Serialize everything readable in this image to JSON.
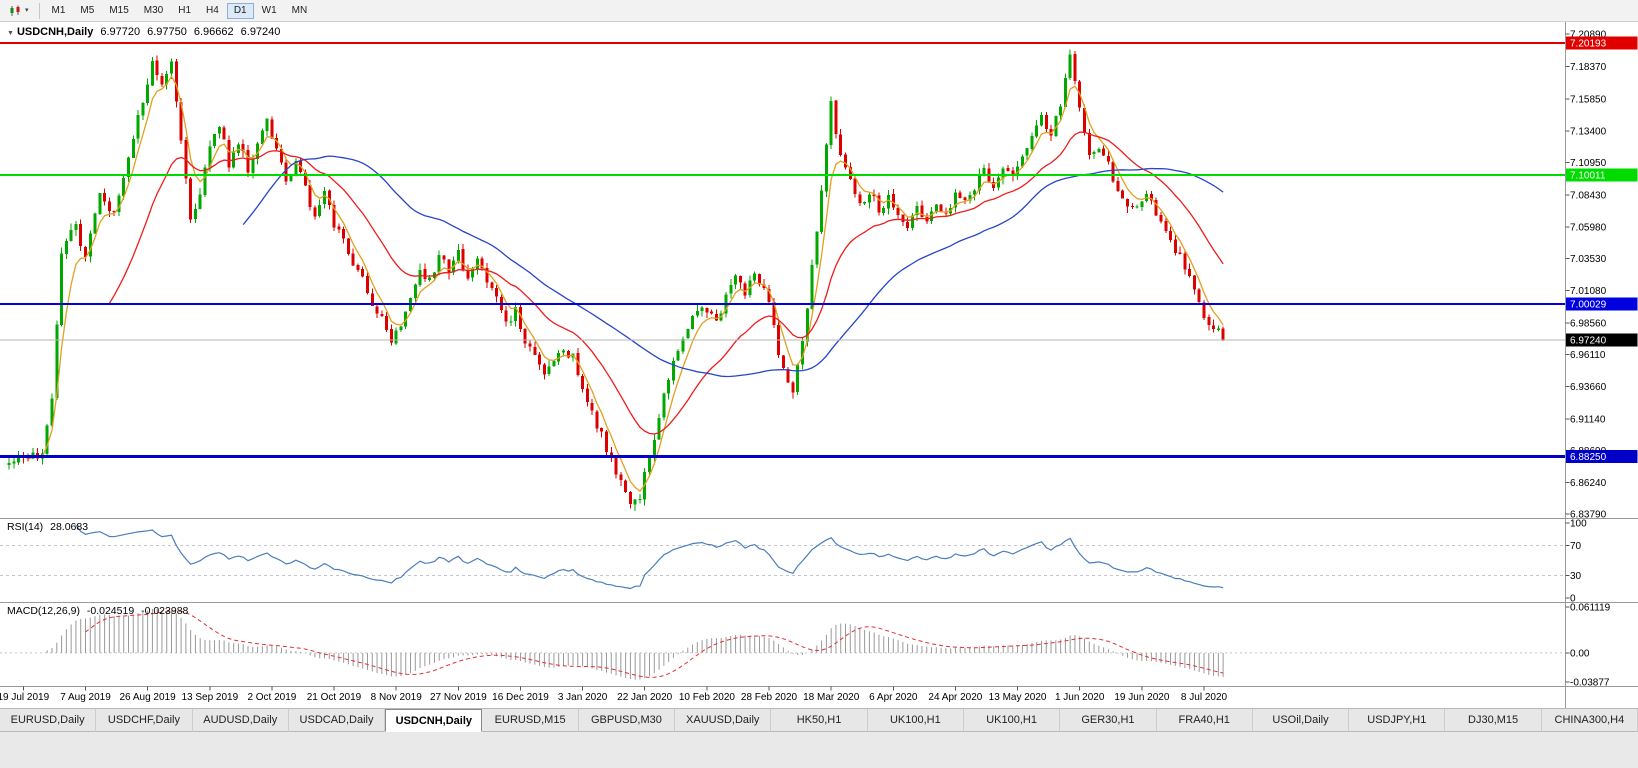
{
  "toolbar": {
    "timeframes": [
      "M1",
      "M5",
      "M15",
      "M30",
      "H1",
      "H4",
      "D1",
      "W1",
      "MN"
    ],
    "active_timeframe": "D1"
  },
  "chart": {
    "title": "USDCNH,Daily",
    "quote_open": "6.97720",
    "quote_high": "6.97750",
    "quote_low": "6.96662",
    "quote_close": "6.97240"
  },
  "rsi_panel": {
    "label": "RSI(14)",
    "value": "28.0683",
    "axis_labels": [
      "100",
      "70",
      "30",
      "0"
    ],
    "levels": [
      70,
      30
    ],
    "line_color": "#4a7ebb",
    "level_line_color": "#c3c3d1"
  },
  "macd_panel": {
    "label": "MACD(12,26,9)",
    "value_main": "-0.024519",
    "value_signal": "-0.023988",
    "axis_labels": [
      "0.061119",
      "0.00",
      "-0.03877"
    ],
    "histogram_color": "#999999",
    "signal_color": "#e03232"
  },
  "chart_data": {
    "type": "candlestick",
    "symbol": "USDCNH",
    "period": "Daily",
    "x_labels": [
      "19 Jul 2019",
      "7 Aug 2019",
      "26 Aug 2019",
      "13 Sep 2019",
      "2 Oct 2019",
      "21 Oct 2019",
      "8 Nov 2019",
      "27 Nov 2019",
      "16 Dec 2019",
      "3 Jan 2020",
      "22 Jan 2020",
      "10 Feb 2020",
      "28 Feb 2020",
      "18 Mar 2020",
      "6 Apr 2020",
      "24 Apr 2020",
      "13 May 2020",
      "1 Jun 2020",
      "19 Jun 2020",
      "8 Jul 2020"
    ],
    "x_label_indices": [
      3,
      16,
      29,
      42,
      55,
      68,
      81,
      94,
      107,
      120,
      133,
      146,
      159,
      172,
      185,
      198,
      211,
      224,
      237,
      250
    ],
    "y_ticks": [
      7.2089,
      7.1837,
      7.1585,
      7.134,
      7.1095,
      7.0843,
      7.0598,
      7.0353,
      7.0108,
      6.9856,
      6.9611,
      6.9366,
      6.9114,
      6.8869,
      6.8624,
      6.8379
    ],
    "y_range": [
      6.8379,
      7.2089
    ],
    "candle_count": 255,
    "noise": 0.0085,
    "seed": 20200710,
    "close_anchors": [
      [
        0,
        6.881
      ],
      [
        7,
        6.882
      ],
      [
        9,
        6.928
      ],
      [
        11,
        7.038
      ],
      [
        14,
        7.062
      ],
      [
        16,
        7.035
      ],
      [
        19,
        7.082
      ],
      [
        22,
        7.068
      ],
      [
        25,
        7.112
      ],
      [
        28,
        7.158
      ],
      [
        30,
        7.188
      ],
      [
        32,
        7.172
      ],
      [
        34,
        7.188
      ],
      [
        36,
        7.128
      ],
      [
        38,
        7.062
      ],
      [
        40,
        7.086
      ],
      [
        42,
        7.118
      ],
      [
        44,
        7.14
      ],
      [
        46,
        7.108
      ],
      [
        48,
        7.126
      ],
      [
        50,
        7.104
      ],
      [
        52,
        7.128
      ],
      [
        54,
        7.143
      ],
      [
        56,
        7.118
      ],
      [
        58,
        7.094
      ],
      [
        60,
        7.112
      ],
      [
        62,
        7.088
      ],
      [
        64,
        7.068
      ],
      [
        66,
        7.084
      ],
      [
        68,
        7.062
      ],
      [
        70,
        7.052
      ],
      [
        72,
        7.032
      ],
      [
        74,
        7.018
      ],
      [
        76,
        6.998
      ],
      [
        78,
        6.988
      ],
      [
        80,
        6.972
      ],
      [
        82,
        6.984
      ],
      [
        84,
        7.008
      ],
      [
        86,
        7.024
      ],
      [
        88,
        7.018
      ],
      [
        90,
        7.034
      ],
      [
        92,
        7.028
      ],
      [
        94,
        7.038
      ],
      [
        96,
        7.022
      ],
      [
        98,
        7.032
      ],
      [
        100,
        7.018
      ],
      [
        102,
        7.002
      ],
      [
        104,
        6.984
      ],
      [
        106,
        6.994
      ],
      [
        108,
        6.972
      ],
      [
        110,
        6.958
      ],
      [
        112,
        6.942
      ],
      [
        114,
        6.958
      ],
      [
        116,
        6.964
      ],
      [
        118,
        6.958
      ],
      [
        120,
        6.938
      ],
      [
        122,
        6.916
      ],
      [
        124,
        6.898
      ],
      [
        126,
        6.878
      ],
      [
        128,
        6.862
      ],
      [
        130,
        6.846
      ],
      [
        132,
        6.852
      ],
      [
        134,
        6.882
      ],
      [
        136,
        6.916
      ],
      [
        138,
        6.944
      ],
      [
        140,
        6.968
      ],
      [
        142,
        6.982
      ],
      [
        144,
        6.994
      ],
      [
        146,
        6.996
      ],
      [
        148,
        6.988
      ],
      [
        150,
        7.006
      ],
      [
        152,
        7.018
      ],
      [
        154,
        7.008
      ],
      [
        156,
        7.022
      ],
      [
        158,
        7.014
      ],
      [
        160,
        6.982
      ],
      [
        162,
        6.948
      ],
      [
        164,
        6.93
      ],
      [
        166,
        6.972
      ],
      [
        168,
        7.028
      ],
      [
        170,
        7.088
      ],
      [
        172,
        7.158
      ],
      [
        174,
        7.112
      ],
      [
        176,
        7.094
      ],
      [
        178,
        7.078
      ],
      [
        180,
        7.088
      ],
      [
        182,
        7.072
      ],
      [
        184,
        7.084
      ],
      [
        186,
        7.068
      ],
      [
        188,
        7.058
      ],
      [
        190,
        7.074
      ],
      [
        192,
        7.062
      ],
      [
        194,
        7.078
      ],
      [
        196,
        7.068
      ],
      [
        198,
        7.088
      ],
      [
        200,
        7.078
      ],
      [
        202,
        7.092
      ],
      [
        204,
        7.106
      ],
      [
        206,
        7.092
      ],
      [
        208,
        7.102
      ],
      [
        210,
        7.098
      ],
      [
        212,
        7.112
      ],
      [
        214,
        7.128
      ],
      [
        216,
        7.142
      ],
      [
        218,
        7.132
      ],
      [
        220,
        7.152
      ],
      [
        222,
        7.192
      ],
      [
        224,
        7.148
      ],
      [
        226,
        7.116
      ],
      [
        228,
        7.124
      ],
      [
        230,
        7.108
      ],
      [
        232,
        7.088
      ],
      [
        234,
        7.078
      ],
      [
        236,
        7.072
      ],
      [
        238,
        7.082
      ],
      [
        240,
        7.072
      ],
      [
        242,
        7.058
      ],
      [
        244,
        7.042
      ],
      [
        246,
        7.028
      ],
      [
        248,
        7.008
      ],
      [
        250,
        6.992
      ],
      [
        252,
        6.984
      ],
      [
        254,
        6.9724
      ]
    ],
    "colors": {
      "up": "#00a800",
      "down": "#dc0000",
      "ma_fast": "#e0a020",
      "ma_mid": "#ee1c1c",
      "ma_slow": "#2744cc",
      "last_price_line": "#b4b4b4"
    },
    "moving_averages": [
      {
        "period": 5,
        "type": "ema",
        "color_key": "ma_fast"
      },
      {
        "period": 22,
        "type": "ema",
        "color_key": "ma_mid"
      },
      {
        "period": 50,
        "type": "sma",
        "color_key": "ma_slow"
      }
    ],
    "levels": [
      {
        "price": 7.20193,
        "label": "7.20193",
        "color": "#e00000",
        "width": 2
      },
      {
        "price": 7.10011,
        "label": "7.10011",
        "color": "#00dc00",
        "width": 2
      },
      {
        "price": 7.00029,
        "label": "7.00029",
        "color": "#0000e0",
        "width": 2
      },
      {
        "price": 6.8825,
        "label": "6.88250",
        "color": "#0000c8",
        "width": 3
      }
    ],
    "last_price": {
      "value": 6.9724,
      "label": "6.97240",
      "tag_bg": "#000000"
    },
    "rsi_period": 14,
    "macd": {
      "fast": 12,
      "slow": 26,
      "signal": 9,
      "y_max": 0.061119,
      "y_min": -0.03877
    }
  },
  "tabs": {
    "items": [
      "EURUSD,Daily",
      "USDCHF,Daily",
      "AUDUSD,Daily",
      "USDCAD,Daily",
      "USDCNH,Daily",
      "EURUSD,M15",
      "GBPUSD,M30",
      "XAUUSD,Daily",
      "HK50,H1",
      "UK100,H1",
      "UK100,H1",
      "GER30,H1",
      "FRA40,H1",
      "USOil,Daily",
      "USDJPY,H1",
      "DJ30,M15",
      "CHINA300,H4"
    ],
    "active_index": 4
  }
}
